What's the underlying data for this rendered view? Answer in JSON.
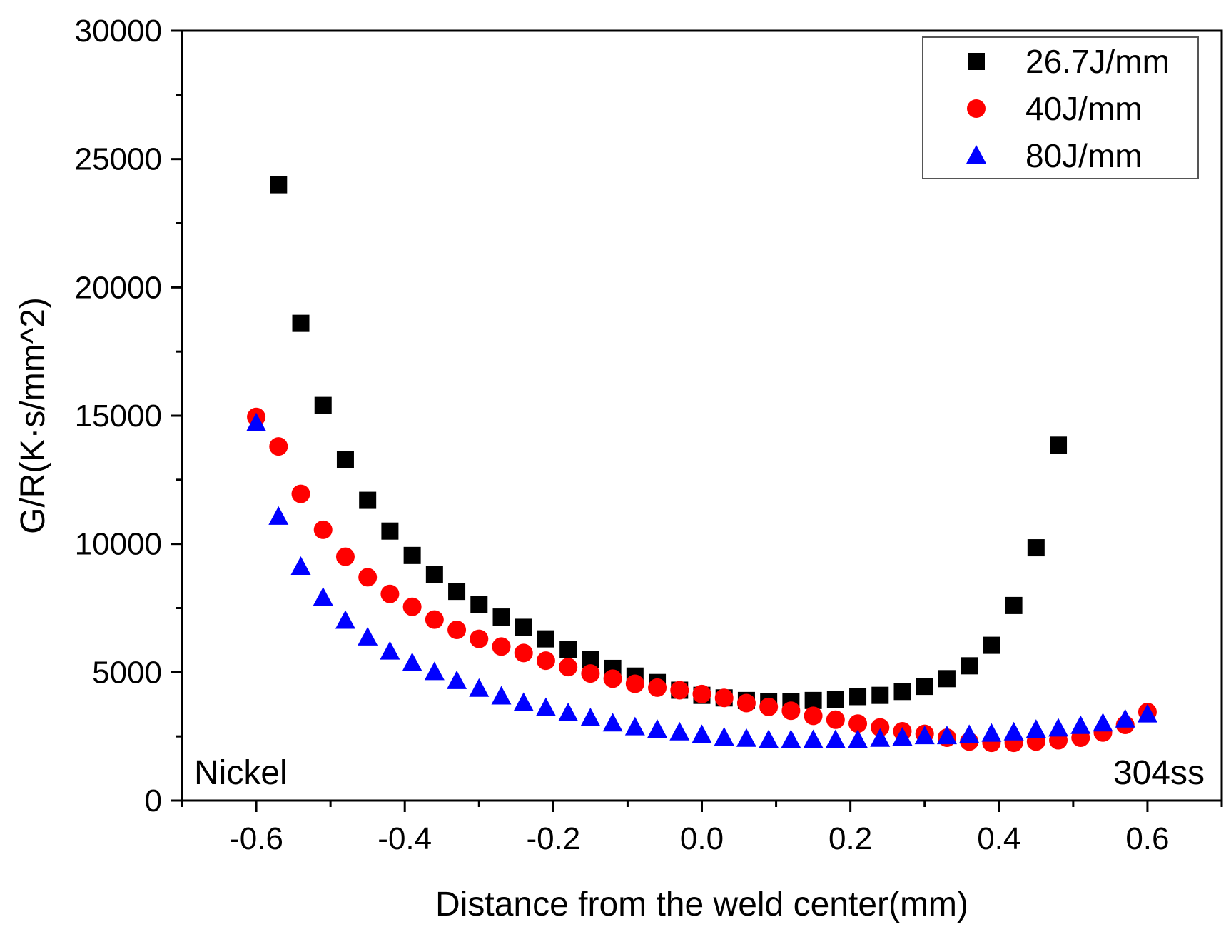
{
  "chart_data": {
    "type": "scatter",
    "xlabel": "Distance from the weld center(mm)",
    "ylabel": "G/R(K·s/mm^2)",
    "xlim": [
      -0.7,
      0.7
    ],
    "ylim": [
      0,
      30000
    ],
    "x_major_ticks": [
      -0.6,
      -0.4,
      -0.2,
      0.0,
      0.2,
      0.4,
      0.6
    ],
    "x_tick_labels": [
      "-0.6",
      "-0.4",
      "-0.2",
      "0.0",
      "0.2",
      "0.4",
      "0.6"
    ],
    "x_minor_ticks": [
      -0.7,
      -0.5,
      -0.3,
      -0.1,
      0.1,
      0.3,
      0.5,
      0.7
    ],
    "y_major_ticks": [
      0,
      5000,
      10000,
      15000,
      20000,
      25000,
      30000
    ],
    "y_tick_labels": [
      "0",
      "5000",
      "10000",
      "15000",
      "20000",
      "25000",
      "30000"
    ],
    "y_minor_ticks": [
      2500,
      7500,
      12500,
      17500,
      22500,
      27500
    ],
    "grid": false,
    "legend_position": "top-right",
    "annotations": [
      {
        "text": "Nickel",
        "position": "bottom-left"
      },
      {
        "text": "304ss",
        "position": "bottom-right"
      }
    ],
    "series": [
      {
        "name": "26.7J/mm",
        "marker": "square",
        "color": "#000000",
        "points": [
          [
            -0.57,
            24000
          ],
          [
            -0.54,
            18600
          ],
          [
            -0.51,
            15400
          ],
          [
            -0.48,
            13300
          ],
          [
            -0.45,
            11700
          ],
          [
            -0.42,
            10500
          ],
          [
            -0.39,
            9550
          ],
          [
            -0.36,
            8800
          ],
          [
            -0.33,
            8150
          ],
          [
            -0.3,
            7650
          ],
          [
            -0.27,
            7150
          ],
          [
            -0.24,
            6750
          ],
          [
            -0.21,
            6300
          ],
          [
            -0.18,
            5900
          ],
          [
            -0.15,
            5500
          ],
          [
            -0.12,
            5150
          ],
          [
            -0.09,
            4850
          ],
          [
            -0.06,
            4600
          ],
          [
            -0.03,
            4300
          ],
          [
            0.0,
            4100
          ],
          [
            0.03,
            4000
          ],
          [
            0.06,
            3900
          ],
          [
            0.09,
            3850
          ],
          [
            0.12,
            3850
          ],
          [
            0.15,
            3900
          ],
          [
            0.18,
            3950
          ],
          [
            0.21,
            4050
          ],
          [
            0.24,
            4100
          ],
          [
            0.27,
            4250
          ],
          [
            0.3,
            4450
          ],
          [
            0.33,
            4750
          ],
          [
            0.36,
            5250
          ],
          [
            0.39,
            6050
          ],
          [
            0.42,
            7600
          ],
          [
            0.45,
            9850
          ],
          [
            0.48,
            13850
          ]
        ]
      },
      {
        "name": "40J/mm",
        "marker": "circle",
        "color": "#ff0000",
        "points": [
          [
            -0.6,
            14950
          ],
          [
            -0.57,
            13800
          ],
          [
            -0.54,
            11950
          ],
          [
            -0.51,
            10550
          ],
          [
            -0.48,
            9500
          ],
          [
            -0.45,
            8700
          ],
          [
            -0.42,
            8050
          ],
          [
            -0.39,
            7550
          ],
          [
            -0.36,
            7050
          ],
          [
            -0.33,
            6650
          ],
          [
            -0.3,
            6300
          ],
          [
            -0.27,
            6000
          ],
          [
            -0.24,
            5750
          ],
          [
            -0.21,
            5450
          ],
          [
            -0.18,
            5200
          ],
          [
            -0.15,
            4950
          ],
          [
            -0.12,
            4750
          ],
          [
            -0.09,
            4550
          ],
          [
            -0.06,
            4400
          ],
          [
            -0.03,
            4300
          ],
          [
            0.0,
            4150
          ],
          [
            0.03,
            4000
          ],
          [
            0.06,
            3800
          ],
          [
            0.09,
            3650
          ],
          [
            0.12,
            3500
          ],
          [
            0.15,
            3300
          ],
          [
            0.18,
            3150
          ],
          [
            0.21,
            3000
          ],
          [
            0.24,
            2850
          ],
          [
            0.27,
            2700
          ],
          [
            0.3,
            2600
          ],
          [
            0.33,
            2450
          ],
          [
            0.36,
            2300
          ],
          [
            0.39,
            2250
          ],
          [
            0.42,
            2250
          ],
          [
            0.45,
            2300
          ],
          [
            0.48,
            2350
          ],
          [
            0.51,
            2450
          ],
          [
            0.54,
            2650
          ],
          [
            0.57,
            2950
          ],
          [
            0.6,
            3450
          ]
        ]
      },
      {
        "name": "80J/mm",
        "marker": "triangle",
        "color": "#0000ff",
        "points": [
          [
            -0.6,
            14700
          ],
          [
            -0.57,
            11050
          ],
          [
            -0.54,
            9100
          ],
          [
            -0.51,
            7900
          ],
          [
            -0.48,
            7000
          ],
          [
            -0.45,
            6350
          ],
          [
            -0.42,
            5800
          ],
          [
            -0.39,
            5350
          ],
          [
            -0.36,
            5000
          ],
          [
            -0.33,
            4650
          ],
          [
            -0.3,
            4350
          ],
          [
            -0.27,
            4050
          ],
          [
            -0.24,
            3800
          ],
          [
            -0.21,
            3600
          ],
          [
            -0.18,
            3400
          ],
          [
            -0.15,
            3200
          ],
          [
            -0.12,
            3000
          ],
          [
            -0.09,
            2850
          ],
          [
            -0.06,
            2750
          ],
          [
            -0.03,
            2650
          ],
          [
            0.0,
            2550
          ],
          [
            0.03,
            2450
          ],
          [
            0.06,
            2400
          ],
          [
            0.09,
            2350
          ],
          [
            0.12,
            2350
          ],
          [
            0.15,
            2350
          ],
          [
            0.18,
            2350
          ],
          [
            0.21,
            2350
          ],
          [
            0.24,
            2400
          ],
          [
            0.27,
            2450
          ],
          [
            0.3,
            2500
          ],
          [
            0.33,
            2500
          ],
          [
            0.36,
            2550
          ],
          [
            0.39,
            2600
          ],
          [
            0.42,
            2650
          ],
          [
            0.45,
            2750
          ],
          [
            0.48,
            2800
          ],
          [
            0.51,
            2900
          ],
          [
            0.54,
            3000
          ],
          [
            0.57,
            3150
          ],
          [
            0.6,
            3350
          ]
        ]
      }
    ]
  }
}
